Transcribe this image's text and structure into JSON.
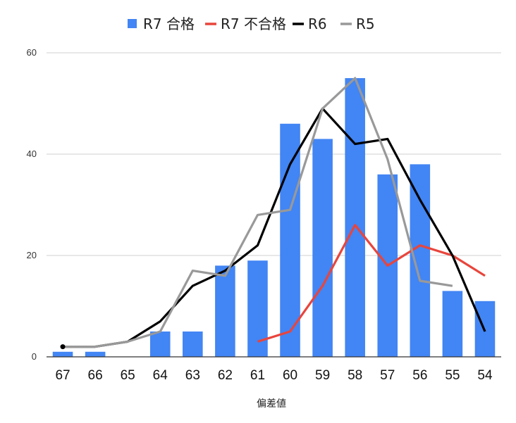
{
  "chart_data": {
    "type": "bar",
    "title": "",
    "xlabel": "偏差値",
    "ylabel": "",
    "ylim": [
      0,
      60
    ],
    "yticks": [
      0,
      20,
      40,
      60
    ],
    "grid": true,
    "legend_position": "top",
    "categories": [
      "67",
      "66",
      "65",
      "64",
      "63",
      "62",
      "61",
      "60",
      "59",
      "58",
      "57",
      "56",
      "55",
      "54"
    ],
    "series": [
      {
        "name": "R7 合格",
        "kind": "bar",
        "color": "#4285f4",
        "values": [
          1,
          1,
          null,
          5,
          5,
          18,
          19,
          46,
          43,
          55,
          36,
          38,
          13,
          11
        ]
      },
      {
        "name": "R7 不合格",
        "kind": "line",
        "color": "#e8453c",
        "values": [
          null,
          null,
          null,
          null,
          null,
          null,
          3,
          5,
          14,
          26,
          18,
          22,
          20,
          16
        ]
      },
      {
        "name": "R6",
        "kind": "line",
        "color": "#000000",
        "values": [
          2,
          2,
          3,
          7,
          14,
          17,
          22,
          38,
          49,
          42,
          43,
          31,
          20,
          5
        ]
      },
      {
        "name": "R5",
        "kind": "line",
        "color": "#999999",
        "values": [
          2,
          2,
          3,
          5,
          17,
          16,
          28,
          29,
          49,
          55,
          39,
          15,
          14,
          null
        ]
      }
    ]
  }
}
